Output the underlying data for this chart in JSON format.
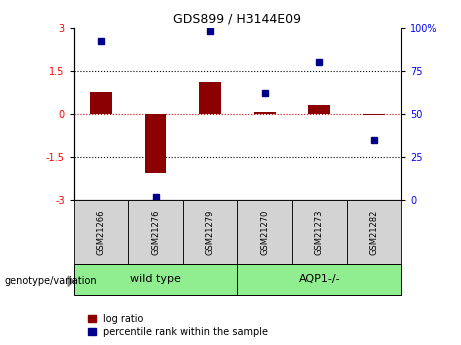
{
  "title": "GDS899 / H3144E09",
  "samples": [
    "GSM21266",
    "GSM21276",
    "GSM21279",
    "GSM21270",
    "GSM21273",
    "GSM21282"
  ],
  "log_ratios": [
    0.75,
    -2.05,
    1.1,
    0.05,
    0.3,
    -0.05
  ],
  "percentile_ranks": [
    92,
    2,
    98,
    62,
    80,
    35
  ],
  "bar_color": "#8B0000",
  "dot_color": "#00008B",
  "ylim_left": [
    -3,
    3
  ],
  "ylim_right": [
    0,
    100
  ],
  "yticks_left": [
    -3,
    -1.5,
    0,
    1.5,
    3
  ],
  "yticks_right": [
    0,
    25,
    50,
    75,
    100
  ],
  "hline_dotted": [
    -1.5,
    1.5
  ],
  "zero_line_color": "#cc0000",
  "bg_color": "#ffffff",
  "header_label": "genotype/variation",
  "legend_items": [
    "log ratio",
    "percentile rank within the sample"
  ],
  "group_defs": [
    {
      "label": "wild type",
      "start": 0,
      "end": 3
    },
    {
      "label": "AQP1-/-",
      "start": 3,
      "end": 6
    }
  ],
  "group_color": "#90EE90",
  "sample_box_color": "#d3d3d3",
  "title_fontsize": 9,
  "tick_fontsize": 7,
  "label_fontsize": 7,
  "group_fontsize": 8
}
